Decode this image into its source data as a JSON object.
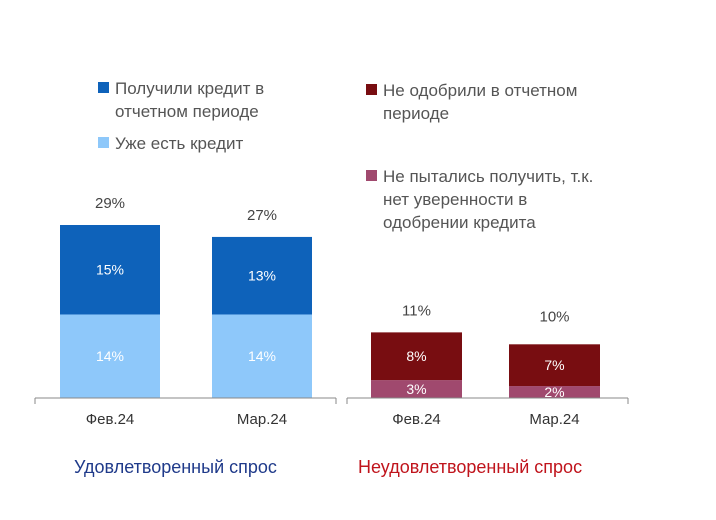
{
  "chart_data": [
    {
      "type": "bar",
      "stacked": true,
      "title": "Удовлетворенный спрос",
      "categories": [
        "Фев.24",
        "Мар.24"
      ],
      "series": [
        {
          "name": "Уже есть кредит",
          "values": [
            14,
            14
          ],
          "labels": [
            "14%",
            "14%"
          ],
          "color": "#8EC8FA"
        },
        {
          "name": "Получили кредит в отчетном периоде",
          "values": [
            15,
            13
          ],
          "labels": [
            "15%",
            "13%"
          ],
          "color": "#0E62BA"
        }
      ],
      "totals": [
        29,
        27
      ],
      "total_labels": [
        "29%",
        "27%"
      ],
      "title_color": "#1F3A8A",
      "ylim": [
        0,
        30
      ]
    },
    {
      "type": "bar",
      "stacked": true,
      "title": "Неудовлетворенный спрос",
      "categories": [
        "Фев.24",
        "Мар.24"
      ],
      "series": [
        {
          "name": "Не пытались получить, т.к. нет уверенности в одобрении кредита",
          "values": [
            3,
            2
          ],
          "labels": [
            "3%",
            "2%"
          ],
          "color": "#A0496E"
        },
        {
          "name": "Не одобрили в отчетном периоде",
          "values": [
            8,
            7
          ],
          "labels": [
            "8%",
            "7%"
          ],
          "color": "#780D11"
        }
      ],
      "totals": [
        11,
        10
      ],
      "total_labels": [
        "11%",
        "10%"
      ],
      "title_color": "#C0141C",
      "ylim": [
        0,
        30
      ]
    }
  ],
  "legend": {
    "left": [
      {
        "lines": [
          "Получили кредит в",
          "отчетном периоде"
        ],
        "color": "#0E62BA"
      },
      {
        "lines": [
          "Уже есть кредит"
        ],
        "color": "#8EC8FA"
      }
    ],
    "right": [
      {
        "lines": [
          "Не одобрили в отчетном",
          "периоде"
        ],
        "color": "#780D11"
      },
      {
        "lines": [
          "Не пытались получить, т.к.",
          "нет уверенности в",
          "одобрении кредита"
        ],
        "color": "#A0496E"
      }
    ]
  }
}
